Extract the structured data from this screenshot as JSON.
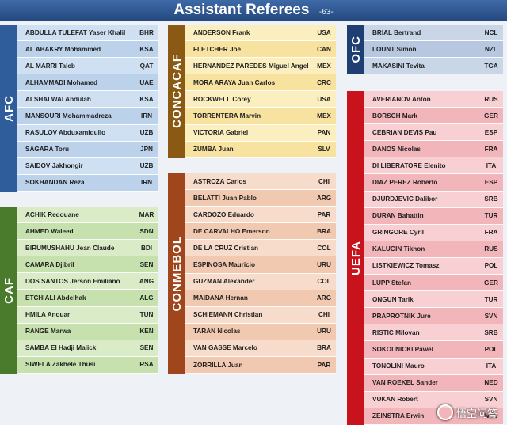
{
  "header": {
    "title": "Assistant Referees",
    "page": "-63-"
  },
  "confederations": [
    {
      "id": "afc",
      "label": "AFC",
      "color": "#2f5d9b",
      "rowA": "#cfe0f3",
      "rowB": "#bcd1ea",
      "referees": [
        {
          "name": "ABDULLA TULEFAT Yaser Khalil",
          "code": "BHR"
        },
        {
          "name": "AL ABAKRY   Mohammed",
          "code": "KSA"
        },
        {
          "name": "AL MARRI Taleb",
          "code": "QAT"
        },
        {
          "name": "ALHAMMADI Mohamed",
          "code": "UAE"
        },
        {
          "name": "ALSHALWAI Abdulah",
          "code": "KSA"
        },
        {
          "name": "MANSOURI Mohammadreza",
          "code": "IRN"
        },
        {
          "name": "RASULOV Abduxamidullo",
          "code": "UZB"
        },
        {
          "name": "SAGARA Toru",
          "code": "JPN"
        },
        {
          "name": "SAIDOV Jakhongir",
          "code": "UZB"
        },
        {
          "name": "SOKHANDAN Reza",
          "code": "IRN"
        }
      ]
    },
    {
      "id": "caf",
      "label": "CAF",
      "color": "#4a7a2c",
      "rowA": "#d9ebc7",
      "rowB": "#c6e0ae",
      "referees": [
        {
          "name": "ACHIK Redouane",
          "code": "MAR"
        },
        {
          "name": "AHMED Waleed",
          "code": "SDN"
        },
        {
          "name": "BIRUMUSHAHU Jean Claude",
          "code": "BDI"
        },
        {
          "name": "CAMARA Djibril",
          "code": "SEN"
        },
        {
          "name": "DOS SANTOS Jerson Emiliano",
          "code": "ANG"
        },
        {
          "name": "ETCHIALI Abdelhak",
          "code": "ALG"
        },
        {
          "name": "HMILA Anouar",
          "code": "TUN"
        },
        {
          "name": "RANGE Marwa",
          "code": "KEN"
        },
        {
          "name": "SAMBA El Hadji Malick",
          "code": "SEN"
        },
        {
          "name": "SIWELA Zakhele Thusi",
          "code": "RSA"
        }
      ]
    },
    {
      "id": "concacaf",
      "label": "CONCACAF",
      "color": "#8a5a15",
      "rowA": "#fbeebf",
      "rowB": "#f7e2a0",
      "referees": [
        {
          "name": "ANDERSON Frank",
          "code": "USA"
        },
        {
          "name": "FLETCHER Joe",
          "code": "CAN"
        },
        {
          "name": "HERNANDEZ PAREDES Miguel Angel",
          "code": "MEX"
        },
        {
          "name": "MORA ARAYA Juan Carlos",
          "code": "CRC"
        },
        {
          "name": "ROCKWELL Corey",
          "code": "USA"
        },
        {
          "name": "TORRENTERA Marvin",
          "code": "MEX"
        },
        {
          "name": "VICTORIA Gabriel",
          "code": "PAN"
        },
        {
          "name": "ZUMBA Juan",
          "code": "SLV"
        }
      ]
    },
    {
      "id": "conmebol",
      "label": "CONMEBOL",
      "color": "#a0461c",
      "rowA": "#f8dccb",
      "rowB": "#f1c8b0",
      "referees": [
        {
          "name": "ASTROZA Carlos",
          "code": "CHI"
        },
        {
          "name": "BELATTI Juan Pablo",
          "code": "ARG"
        },
        {
          "name": "CARDOZO Eduardo",
          "code": "PAR"
        },
        {
          "name": "DE CARVALHO Emerson",
          "code": "BRA"
        },
        {
          "name": "DE LA CRUZ Cristian",
          "code": "COL"
        },
        {
          "name": "ESPINOSA Mauricio",
          "code": "URU"
        },
        {
          "name": "GUZMAN Alexander",
          "code": "COL"
        },
        {
          "name": "MAIDANA Hernan",
          "code": "ARG"
        },
        {
          "name": "SCHIEMANN Christian",
          "code": "CHI"
        },
        {
          "name": "TARAN Nicolas",
          "code": "URU"
        },
        {
          "name": "VAN GASSE Marcelo",
          "code": "BRA"
        },
        {
          "name": "ZORRILLA Juan",
          "code": "PAR"
        }
      ]
    },
    {
      "id": "ofc",
      "label": "OFC",
      "color": "#1f3f73",
      "rowA": "#c9d6e8",
      "rowB": "#b6c7df",
      "referees": [
        {
          "name": "BRIAL Bertrand",
          "code": "NCL"
        },
        {
          "name": "LOUNT Simon",
          "code": "NZL"
        },
        {
          "name": "MAKASINI Tevita",
          "code": "TGA"
        }
      ]
    },
    {
      "id": "uefa",
      "label": "UEFA",
      "color": "#c8131c",
      "rowA": "#f8cfd2",
      "rowB": "#f1b5ba",
      "referees": [
        {
          "name": "AVERIANOV Anton",
          "code": "RUS"
        },
        {
          "name": "BORSCH Mark",
          "code": "GER"
        },
        {
          "name": "CEBRIAN DEVIS Pau",
          "code": "ESP"
        },
        {
          "name": "DANOS Nicolas",
          "code": "FRA"
        },
        {
          "name": "DI LIBERATORE Elenito",
          "code": "ITA"
        },
        {
          "name": "DIAZ PEREZ Roberto",
          "code": "ESP"
        },
        {
          "name": "DJURDJEVIC Dalibor",
          "code": "SRB"
        },
        {
          "name": "DURAN Bahattin",
          "code": "TUR"
        },
        {
          "name": "GRINGORE Cyril",
          "code": "FRA"
        },
        {
          "name": "KALUGIN Tikhon",
          "code": "RUS"
        },
        {
          "name": "LISTKIEWICZ Tomasz",
          "code": "POL"
        },
        {
          "name": "LUPP Stefan",
          "code": "GER"
        },
        {
          "name": "ONGUN Tarik",
          "code": "TUR"
        },
        {
          "name": "PRAPROTNIK Jure",
          "code": "SVN"
        },
        {
          "name": "RISTIC Milovan",
          "code": "SRB"
        },
        {
          "name": "SOKOLNICKI Pawel",
          "code": "POL"
        },
        {
          "name": "TONOLINI Mauro",
          "code": "ITA"
        },
        {
          "name": "VAN ROEKEL Sander",
          "code": "NED"
        },
        {
          "name": "VUKAN Robert",
          "code": "SVN"
        },
        {
          "name": "ZEINSTRA Erwin",
          "code": "NED"
        }
      ]
    }
  ],
  "watermark": {
    "text": "悟空问答",
    "icon": "wukong-logo-icon"
  }
}
